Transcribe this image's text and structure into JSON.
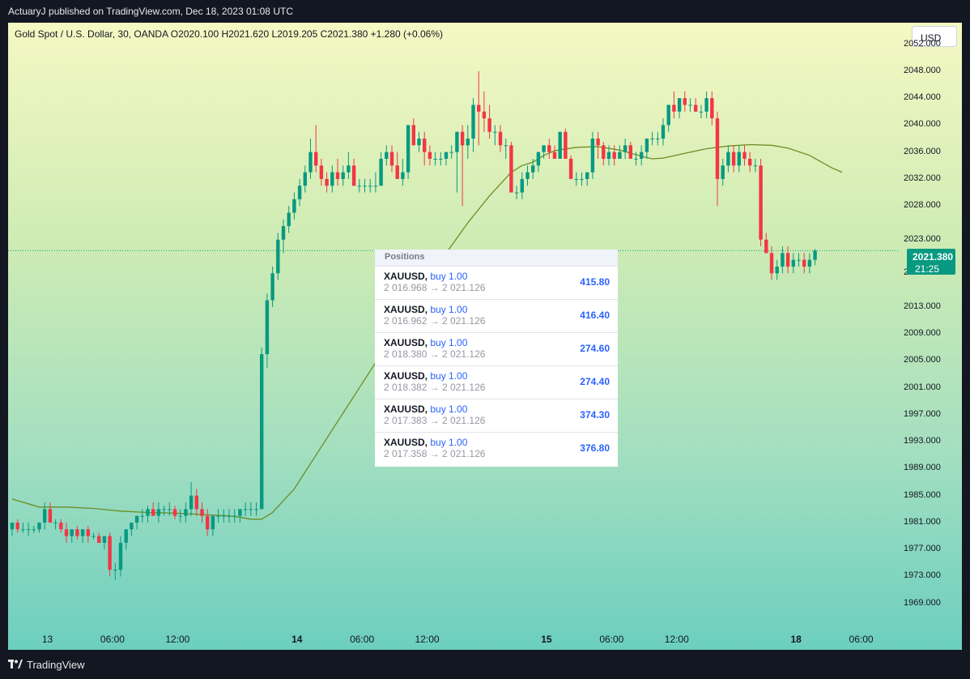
{
  "header": {
    "published_text": "ActuaryJ published on TradingView.com, Dec 18, 2023 01:08 UTC"
  },
  "legend": {
    "text": "Gold Spot / U.S. Dollar, 30, OANDA  O2020.100  H2021.620  L2019.205  C2021.380  +1.280 (+0.06%)"
  },
  "currency": "USD",
  "price_tag": {
    "price": "2021.380",
    "countdown": "21:25",
    "color": "#089981"
  },
  "positions": {
    "header": "Positions",
    "rows": [
      {
        "symbol": "XAUUSD,",
        "side": "buy 1.00",
        "prices": "2 016.968 → 2 021.126",
        "pl": "415.80"
      },
      {
        "symbol": "XAUUSD,",
        "side": "buy 1.00",
        "prices": "2 016.962 → 2 021.126",
        "pl": "416.40"
      },
      {
        "symbol": "XAUUSD,",
        "side": "buy 1.00",
        "prices": "2 018.380 → 2 021.126",
        "pl": "274.60"
      },
      {
        "symbol": "XAUUSD,",
        "side": "buy 1.00",
        "prices": "2 018.382 → 2 021.126",
        "pl": "274.40"
      },
      {
        "symbol": "XAUUSD,",
        "side": "buy 1.00",
        "prices": "2 017.383 → 2 021.126",
        "pl": "374.30"
      },
      {
        "symbol": "XAUUSD,",
        "side": "buy 1.00",
        "prices": "2 017.358 → 2 021.126",
        "pl": "376.80"
      }
    ]
  },
  "branding": {
    "name": "TradingView"
  },
  "chart_data": {
    "type": "candlestick",
    "y_range": [
      1965,
      2054
    ],
    "y_ticks": [
      "2052.000",
      "2048.000",
      "2044.000",
      "2040.000",
      "2036.000",
      "2032.000",
      "2028.000",
      "2023.000",
      "2018.000",
      "2013.000",
      "2009.000",
      "2005.000",
      "2001.000",
      "1997.000",
      "1993.000",
      "1989.000",
      "1985.000",
      "1981.000",
      "1977.000",
      "1973.000",
      "1969.000"
    ],
    "x_ticks": [
      {
        "label": "13",
        "bar": 6.5,
        "bold": false
      },
      {
        "label": "06:00",
        "bar": 18.5,
        "bold": false
      },
      {
        "label": "12:00",
        "bar": 30.5,
        "bold": false
      },
      {
        "label": "14",
        "bar": 52.5,
        "bold": true
      },
      {
        "label": "06:00",
        "bar": 64.5,
        "bold": false
      },
      {
        "label": "12:00",
        "bar": 76.5,
        "bold": false
      },
      {
        "label": "15",
        "bar": 98.5,
        "bold": true
      },
      {
        "label": "06:00",
        "bar": 110.5,
        "bold": false
      },
      {
        "label": "12:00",
        "bar": 122.5,
        "bold": false
      },
      {
        "label": "18",
        "bar": 144.5,
        "bold": true
      },
      {
        "label": "06:00",
        "bar": 156.5,
        "bold": false
      }
    ],
    "current_price": 2021.38,
    "colors": {
      "up": "#089981",
      "down": "#f23645",
      "ma": "#6b8e23"
    },
    "candles": [
      {
        "o": 1980,
        "h": 1981,
        "l": 1979,
        "c": 1981
      },
      {
        "o": 1981,
        "h": 1981.5,
        "l": 1979.5,
        "c": 1980
      },
      {
        "o": 1980,
        "h": 1981,
        "l": 1979.5,
        "c": 1980
      },
      {
        "o": 1980,
        "h": 1981,
        "l": 1979,
        "c": 1980
      },
      {
        "o": 1980,
        "h": 1980.5,
        "l": 1979.5,
        "c": 1980
      },
      {
        "o": 1980,
        "h": 1981,
        "l": 1979.5,
        "c": 1981
      },
      {
        "o": 1981,
        "h": 1984,
        "l": 1980,
        "c": 1983
      },
      {
        "o": 1983,
        "h": 1984,
        "l": 1981,
        "c": 1981
      },
      {
        "o": 1981,
        "h": 1981.5,
        "l": 1980,
        "c": 1981
      },
      {
        "o": 1981,
        "h": 1981.5,
        "l": 1979.5,
        "c": 1980
      },
      {
        "o": 1980,
        "h": 1981,
        "l": 1978,
        "c": 1979
      },
      {
        "o": 1979,
        "h": 1980,
        "l": 1978,
        "c": 1980
      },
      {
        "o": 1980,
        "h": 1980.5,
        "l": 1978.5,
        "c": 1979
      },
      {
        "o": 1979,
        "h": 1980,
        "l": 1978,
        "c": 1980
      },
      {
        "o": 1980,
        "h": 1980.5,
        "l": 1978,
        "c": 1979
      },
      {
        "o": 1979,
        "h": 1979.5,
        "l": 1978.5,
        "c": 1979
      },
      {
        "o": 1979,
        "h": 1979.5,
        "l": 1978,
        "c": 1978
      },
      {
        "o": 1978,
        "h": 1979,
        "l": 1977,
        "c": 1979
      },
      {
        "o": 1979,
        "h": 1979.5,
        "l": 1973,
        "c": 1974
      },
      {
        "o": 1974,
        "h": 1975,
        "l": 1972.5,
        "c": 1974
      },
      {
        "o": 1974,
        "h": 1979,
        "l": 1973,
        "c": 1978
      },
      {
        "o": 1978,
        "h": 1980,
        "l": 1977,
        "c": 1980
      },
      {
        "o": 1980,
        "h": 1981,
        "l": 1979,
        "c": 1981
      },
      {
        "o": 1981,
        "h": 1982,
        "l": 1980,
        "c": 1982
      },
      {
        "o": 1982,
        "h": 1983,
        "l": 1981,
        "c": 1982
      },
      {
        "o": 1982,
        "h": 1983.5,
        "l": 1981,
        "c": 1983
      },
      {
        "o": 1983,
        "h": 1984,
        "l": 1982,
        "c": 1982
      },
      {
        "o": 1982,
        "h": 1984,
        "l": 1981,
        "c": 1983
      },
      {
        "o": 1983,
        "h": 1983.5,
        "l": 1982,
        "c": 1983
      },
      {
        "o": 1983,
        "h": 1984,
        "l": 1982,
        "c": 1983
      },
      {
        "o": 1983,
        "h": 1983.5,
        "l": 1981.5,
        "c": 1982
      },
      {
        "o": 1982,
        "h": 1983,
        "l": 1981,
        "c": 1982
      },
      {
        "o": 1982,
        "h": 1984,
        "l": 1981,
        "c": 1983
      },
      {
        "o": 1983,
        "h": 1987,
        "l": 1982,
        "c": 1985
      },
      {
        "o": 1985,
        "h": 1986,
        "l": 1982,
        "c": 1983
      },
      {
        "o": 1983,
        "h": 1984,
        "l": 1981,
        "c": 1982
      },
      {
        "o": 1982,
        "h": 1983,
        "l": 1979,
        "c": 1980
      },
      {
        "o": 1980,
        "h": 1982,
        "l": 1979,
        "c": 1982
      },
      {
        "o": 1982,
        "h": 1983,
        "l": 1981,
        "c": 1982
      },
      {
        "o": 1982,
        "h": 1983,
        "l": 1981,
        "c": 1982
      },
      {
        "o": 1982,
        "h": 1983,
        "l": 1981,
        "c": 1982
      },
      {
        "o": 1982,
        "h": 1983,
        "l": 1981,
        "c": 1982
      },
      {
        "o": 1982,
        "h": 1983,
        "l": 1981,
        "c": 1983
      },
      {
        "o": 1983,
        "h": 1984,
        "l": 1982,
        "c": 1983
      },
      {
        "o": 1983,
        "h": 1984,
        "l": 1982,
        "c": 1983
      },
      {
        "o": 1983,
        "h": 1984,
        "l": 1982,
        "c": 1983
      },
      {
        "o": 1983,
        "h": 2007,
        "l": 1983,
        "c": 2006
      },
      {
        "o": 2006,
        "h": 2015,
        "l": 2004,
        "c": 2014
      },
      {
        "o": 2014,
        "h": 2019,
        "l": 2013,
        "c": 2018
      },
      {
        "o": 2018,
        "h": 2024,
        "l": 2017,
        "c": 2023
      },
      {
        "o": 2023,
        "h": 2026,
        "l": 2021,
        "c": 2025
      },
      {
        "o": 2025,
        "h": 2028,
        "l": 2024,
        "c": 2027
      },
      {
        "o": 2027,
        "h": 2030,
        "l": 2026,
        "c": 2029
      },
      {
        "o": 2029,
        "h": 2032,
        "l": 2028,
        "c": 2031
      },
      {
        "o": 2031,
        "h": 2034,
        "l": 2030,
        "c": 2033
      },
      {
        "o": 2033,
        "h": 2038,
        "l": 2032,
        "c": 2036
      },
      {
        "o": 2036,
        "h": 2040,
        "l": 2033,
        "c": 2034
      },
      {
        "o": 2034,
        "h": 2035,
        "l": 2031,
        "c": 2032
      },
      {
        "o": 2032,
        "h": 2033,
        "l": 2030,
        "c": 2031
      },
      {
        "o": 2031,
        "h": 2034,
        "l": 2030,
        "c": 2033
      },
      {
        "o": 2033,
        "h": 2035,
        "l": 2031,
        "c": 2032
      },
      {
        "o": 2032,
        "h": 2034,
        "l": 2031,
        "c": 2033
      },
      {
        "o": 2033,
        "h": 2036,
        "l": 2032,
        "c": 2034
      },
      {
        "o": 2034,
        "h": 2035,
        "l": 2031,
        "c": 2031
      },
      {
        "o": 2031,
        "h": 2032,
        "l": 2030,
        "c": 2031
      },
      {
        "o": 2031,
        "h": 2032,
        "l": 2030,
        "c": 2031
      },
      {
        "o": 2031,
        "h": 2032,
        "l": 2030,
        "c": 2031
      },
      {
        "o": 2031,
        "h": 2033,
        "l": 2030,
        "c": 2031
      },
      {
        "o": 2031,
        "h": 2036,
        "l": 2031,
        "c": 2035
      },
      {
        "o": 2035,
        "h": 2037,
        "l": 2034,
        "c": 2036
      },
      {
        "o": 2036,
        "h": 2037,
        "l": 2033,
        "c": 2034
      },
      {
        "o": 2034,
        "h": 2036,
        "l": 2032,
        "c": 2032
      },
      {
        "o": 2032,
        "h": 2035,
        "l": 2031,
        "c": 2033
      },
      {
        "o": 2033,
        "h": 2040,
        "l": 2032,
        "c": 2040
      },
      {
        "o": 2040,
        "h": 2041,
        "l": 2037,
        "c": 2037
      },
      {
        "o": 2037,
        "h": 2039,
        "l": 2036,
        "c": 2038
      },
      {
        "o": 2038,
        "h": 2039,
        "l": 2034,
        "c": 2036
      },
      {
        "o": 2036,
        "h": 2037,
        "l": 2034,
        "c": 2035
      },
      {
        "o": 2035,
        "h": 2036,
        "l": 2034,
        "c": 2035
      },
      {
        "o": 2035,
        "h": 2036,
        "l": 2034,
        "c": 2035
      },
      {
        "o": 2035,
        "h": 2036,
        "l": 2034,
        "c": 2036
      },
      {
        "o": 2036,
        "h": 2037,
        "l": 2035,
        "c": 2036
      },
      {
        "o": 2036,
        "h": 2039,
        "l": 2030,
        "c": 2039
      },
      {
        "o": 2039,
        "h": 2040,
        "l": 2028,
        "c": 2037
      },
      {
        "o": 2037,
        "h": 2040,
        "l": 2035,
        "c": 2038
      },
      {
        "o": 2038,
        "h": 2044,
        "l": 2036,
        "c": 2043
      },
      {
        "o": 2043,
        "h": 2048,
        "l": 2037,
        "c": 2042
      },
      {
        "o": 2042,
        "h": 2045,
        "l": 2039,
        "c": 2041
      },
      {
        "o": 2041,
        "h": 2043,
        "l": 2038,
        "c": 2039
      },
      {
        "o": 2039,
        "h": 2040,
        "l": 2037,
        "c": 2039
      },
      {
        "o": 2039,
        "h": 2040,
        "l": 2036,
        "c": 2037
      },
      {
        "o": 2037,
        "h": 2038,
        "l": 2035,
        "c": 2037
      },
      {
        "o": 2037,
        "h": 2037.5,
        "l": 2030,
        "c": 2030
      },
      {
        "o": 2030,
        "h": 2031,
        "l": 2029,
        "c": 2030
      },
      {
        "o": 2030,
        "h": 2033,
        "l": 2029,
        "c": 2032
      },
      {
        "o": 2032,
        "h": 2034,
        "l": 2031,
        "c": 2033
      },
      {
        "o": 2033,
        "h": 2035,
        "l": 2032,
        "c": 2034
      },
      {
        "o": 2034,
        "h": 2036,
        "l": 2033,
        "c": 2036
      },
      {
        "o": 2036,
        "h": 2037,
        "l": 2035,
        "c": 2037
      },
      {
        "o": 2037,
        "h": 2038,
        "l": 2035,
        "c": 2036
      },
      {
        "o": 2036,
        "h": 2037,
        "l": 2035,
        "c": 2035
      },
      {
        "o": 2035,
        "h": 2039,
        "l": 2035,
        "c": 2039
      },
      {
        "o": 2039,
        "h": 2039.5,
        "l": 2035,
        "c": 2035
      },
      {
        "o": 2035,
        "h": 2035.5,
        "l": 2032,
        "c": 2032
      },
      {
        "o": 2032,
        "h": 2033,
        "l": 2031,
        "c": 2032
      },
      {
        "o": 2032,
        "h": 2033,
        "l": 2031,
        "c": 2032
      },
      {
        "o": 2032,
        "h": 2033,
        "l": 2031,
        "c": 2033
      },
      {
        "o": 2033,
        "h": 2039,
        "l": 2032,
        "c": 2038
      },
      {
        "o": 2038,
        "h": 2039,
        "l": 2035,
        "c": 2037
      },
      {
        "o": 2037,
        "h": 2037.5,
        "l": 2034,
        "c": 2035
      },
      {
        "o": 2035,
        "h": 2037,
        "l": 2034,
        "c": 2036
      },
      {
        "o": 2036,
        "h": 2037,
        "l": 2034,
        "c": 2035
      },
      {
        "o": 2035,
        "h": 2037,
        "l": 2035,
        "c": 2036
      },
      {
        "o": 2036,
        "h": 2038,
        "l": 2035,
        "c": 2037
      },
      {
        "o": 2037,
        "h": 2037.5,
        "l": 2035,
        "c": 2035
      },
      {
        "o": 2035,
        "h": 2036,
        "l": 2034,
        "c": 2035
      },
      {
        "o": 2035,
        "h": 2037,
        "l": 2034,
        "c": 2036
      },
      {
        "o": 2036,
        "h": 2038,
        "l": 2035,
        "c": 2038
      },
      {
        "o": 2038,
        "h": 2039,
        "l": 2037,
        "c": 2038
      },
      {
        "o": 2038,
        "h": 2039,
        "l": 2037,
        "c": 2038
      },
      {
        "o": 2038,
        "h": 2041,
        "l": 2037,
        "c": 2040
      },
      {
        "o": 2040,
        "h": 2043,
        "l": 2039,
        "c": 2043
      },
      {
        "o": 2043,
        "h": 2045,
        "l": 2041,
        "c": 2042
      },
      {
        "o": 2042,
        "h": 2044,
        "l": 2041,
        "c": 2044
      },
      {
        "o": 2044,
        "h": 2045,
        "l": 2042,
        "c": 2043
      },
      {
        "o": 2043,
        "h": 2044,
        "l": 2042,
        "c": 2043
      },
      {
        "o": 2043,
        "h": 2044,
        "l": 2042,
        "c": 2042
      },
      {
        "o": 2042,
        "h": 2043,
        "l": 2041,
        "c": 2042
      },
      {
        "o": 2042,
        "h": 2045,
        "l": 2041,
        "c": 2044
      },
      {
        "o": 2044,
        "h": 2045,
        "l": 2040,
        "c": 2041
      },
      {
        "o": 2041,
        "h": 2042,
        "l": 2028,
        "c": 2032
      },
      {
        "o": 2032,
        "h": 2035,
        "l": 2031,
        "c": 2034
      },
      {
        "o": 2034,
        "h": 2037,
        "l": 2033,
        "c": 2036
      },
      {
        "o": 2036,
        "h": 2037,
        "l": 2033,
        "c": 2034
      },
      {
        "o": 2034,
        "h": 2037,
        "l": 2033,
        "c": 2036
      },
      {
        "o": 2036,
        "h": 2037,
        "l": 2034,
        "c": 2035
      },
      {
        "o": 2035,
        "h": 2036,
        "l": 2033,
        "c": 2034
      },
      {
        "o": 2034,
        "h": 2035,
        "l": 2033,
        "c": 2034
      },
      {
        "o": 2034,
        "h": 2035,
        "l": 2022,
        "c": 2023
      },
      {
        "o": 2023,
        "h": 2024,
        "l": 2021,
        "c": 2021
      },
      {
        "o": 2021,
        "h": 2022,
        "l": 2017,
        "c": 2018
      },
      {
        "o": 2018,
        "h": 2020,
        "l": 2017,
        "c": 2019
      },
      {
        "o": 2019,
        "h": 2022,
        "l": 2018,
        "c": 2021
      },
      {
        "o": 2021,
        "h": 2022,
        "l": 2018,
        "c": 2019
      },
      {
        "o": 2019,
        "h": 2021,
        "l": 2018,
        "c": 2020
      },
      {
        "o": 2020,
        "h": 2021,
        "l": 2019,
        "c": 2020
      },
      {
        "o": 2020,
        "h": 2021,
        "l": 2018,
        "c": 2019
      },
      {
        "o": 2019,
        "h": 2021,
        "l": 2018,
        "c": 2020
      },
      {
        "o": 2020,
        "h": 2021.62,
        "l": 2019.205,
        "c": 2021.38
      }
    ],
    "ma": [
      [
        0,
        1984.5
      ],
      [
        5,
        1983.3
      ],
      [
        10,
        1983.3
      ],
      [
        15,
        1983.1
      ],
      [
        20,
        1982.7
      ],
      [
        25,
        1982.5
      ],
      [
        30,
        1982.4
      ],
      [
        35,
        1982.2
      ],
      [
        40,
        1982
      ],
      [
        42,
        1981.8
      ],
      [
        44,
        1981.5
      ],
      [
        46,
        1981.5
      ],
      [
        48,
        1982.5
      ],
      [
        52,
        1986
      ],
      [
        56,
        1991
      ],
      [
        60,
        1996
      ],
      [
        64,
        2001
      ],
      [
        68,
        2006
      ],
      [
        72,
        2011
      ],
      [
        76,
        2016
      ],
      [
        80,
        2021
      ],
      [
        84,
        2025.5
      ],
      [
        88,
        2029.5
      ],
      [
        92,
        2033
      ],
      [
        94,
        2034
      ],
      [
        96,
        2034.5
      ],
      [
        98,
        2035.5
      ],
      [
        100,
        2036.2
      ],
      [
        104,
        2036.7
      ],
      [
        108,
        2036.8
      ],
      [
        112,
        2036.3
      ],
      [
        116,
        2035.4
      ],
      [
        118,
        2035
      ],
      [
        120,
        2035.1
      ],
      [
        124,
        2035.8
      ],
      [
        128,
        2036.5
      ],
      [
        132,
        2036.9
      ],
      [
        136,
        2037.1
      ],
      [
        140,
        2037
      ],
      [
        143,
        2036.6
      ],
      [
        147,
        2035.5
      ],
      [
        151,
        2033.7
      ],
      [
        153,
        2033
      ]
    ]
  }
}
